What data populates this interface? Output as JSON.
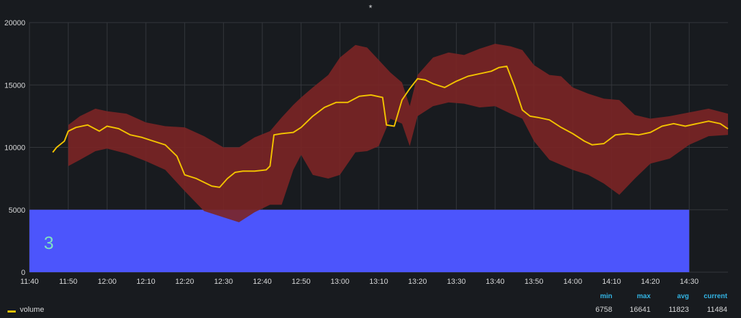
{
  "panel": {
    "title": "*"
  },
  "colors": {
    "line": "#f2c200",
    "band": "#7b2525",
    "band_overlap": "#8a6d1d",
    "threshold": "#4c55fc",
    "grid": "#34373c",
    "text": "#d8d9da",
    "legend_head": "#33b5e5"
  },
  "annotation": {
    "text": "3",
    "color": "#7fe0c3"
  },
  "legend": {
    "headers": {
      "min": "min",
      "max": "max",
      "avg": "avg",
      "current": "current"
    },
    "series": [
      {
        "name": "volume",
        "min": "6758",
        "max": "16641",
        "avg": "11823",
        "current": "11484"
      }
    ]
  },
  "chart_data": {
    "type": "line",
    "title": "*",
    "xlabel": "",
    "ylabel": "",
    "x_ticks": [
      "11:40",
      "11:50",
      "12:00",
      "12:10",
      "12:20",
      "12:30",
      "12:40",
      "12:50",
      "13:00",
      "13:10",
      "13:20",
      "13:30",
      "13:40",
      "13:50",
      "14:00",
      "14:10",
      "14:20",
      "14:30"
    ],
    "y_ticks": [
      "0",
      "5000",
      "10000",
      "15000",
      "20000"
    ],
    "ylim": [
      0,
      20000
    ],
    "xlim_minutes_from_1140": [
      0,
      180
    ],
    "grid": true,
    "threshold": {
      "value": 5000,
      "x_end": "14:30"
    },
    "series": [
      {
        "name": "volume",
        "x": [
          "11:46",
          "11:47",
          "11:49",
          "11:50",
          "11:52",
          "11:55",
          "11:58",
          "12:00",
          "12:03",
          "12:06",
          "12:09",
          "12:12",
          "12:15",
          "12:18",
          "12:20",
          "12:23",
          "12:25",
          "12:27",
          "12:29",
          "12:31",
          "12:33",
          "12:35",
          "12:38",
          "12:41",
          "12:42",
          "12:43",
          "12:45",
          "12:48",
          "12:50",
          "12:53",
          "12:56",
          "12:59",
          "13:02",
          "13:05",
          "13:08",
          "13:11",
          "13:12",
          "13:14",
          "13:16",
          "13:18",
          "13:20",
          "13:22",
          "13:24",
          "13:27",
          "13:30",
          "13:33",
          "13:36",
          "13:39",
          "13:41",
          "13:43",
          "13:45",
          "13:47",
          "13:49",
          "13:51",
          "13:54",
          "13:57",
          "14:00",
          "14:03",
          "14:05",
          "14:08",
          "14:11",
          "14:14",
          "14:17",
          "14:20",
          "14:23",
          "14:26",
          "14:29",
          "14:32",
          "14:35",
          "14:38",
          "14:40"
        ],
        "values": [
          9600,
          10000,
          10500,
          11300,
          11600,
          11800,
          11300,
          11700,
          11500,
          11000,
          10800,
          10500,
          10200,
          9300,
          7800,
          7500,
          7200,
          6900,
          6800,
          7500,
          8000,
          8100,
          8100,
          8200,
          8500,
          11000,
          11100,
          11200,
          11600,
          12500,
          13200,
          13600,
          13600,
          14100,
          14200,
          14000,
          11800,
          11700,
          13800,
          14700,
          15500,
          15400,
          15100,
          14800,
          15300,
          15700,
          15900,
          16100,
          16400,
          16500,
          14900,
          13000,
          12500,
          12400,
          12200,
          11600,
          11100,
          10500,
          10200,
          10300,
          11000,
          11100,
          11000,
          11200,
          11700,
          11900,
          11700,
          11900,
          12100,
          11900,
          11484
        ]
      }
    ],
    "band": {
      "name": "range",
      "x": [
        "11:50",
        "11:53",
        "11:57",
        "12:00",
        "12:05",
        "12:10",
        "12:15",
        "12:20",
        "12:25",
        "12:30",
        "12:34",
        "12:38",
        "12:42",
        "12:45",
        "12:48",
        "12:50",
        "12:53",
        "12:57",
        "13:00",
        "13:04",
        "13:07",
        "13:10",
        "13:13",
        "13:16",
        "13:18",
        "13:20",
        "13:24",
        "13:28",
        "13:32",
        "13:36",
        "13:40",
        "13:44",
        "13:47",
        "13:50",
        "13:54",
        "13:57",
        "14:00",
        "14:04",
        "14:08",
        "14:12",
        "14:16",
        "14:20",
        "14:25",
        "14:30",
        "14:35",
        "14:40"
      ],
      "upper": [
        11800,
        12500,
        13100,
        12900,
        12700,
        12000,
        11700,
        11600,
        10900,
        10000,
        10000,
        10800,
        11300,
        12400,
        13400,
        14000,
        14800,
        15800,
        17200,
        18200,
        18000,
        17000,
        16000,
        15200,
        13300,
        15800,
        17200,
        17600,
        17400,
        17900,
        18300,
        18100,
        17800,
        16600,
        15800,
        15700,
        14800,
        14300,
        13900,
        13800,
        12600,
        12300,
        12500,
        12800,
        13100,
        12700
      ],
      "lower": [
        8500,
        9000,
        9700,
        9900,
        9500,
        8900,
        8200,
        6500,
        4900,
        4400,
        4000,
        4800,
        5400,
        5400,
        8200,
        9400,
        7800,
        7500,
        7800,
        9600,
        9700,
        10100,
        12300,
        11900,
        10100,
        12500,
        13300,
        13600,
        13500,
        13200,
        13300,
        12700,
        12300,
        10500,
        9000,
        8600,
        8200,
        7800,
        7100,
        6200,
        7500,
        8700,
        9100,
        10200,
        10900,
        11000
      ]
    }
  }
}
